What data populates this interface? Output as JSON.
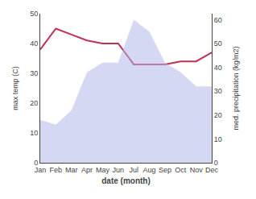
{
  "chart_data": {
    "type": "line",
    "xlabel": "date (month)",
    "ylabel": "max temp (C)",
    "y2label": "med. precipitation (kg/m2)",
    "categories": [
      "Jan",
      "Feb",
      "Mar",
      "Apr",
      "May",
      "Jun",
      "Jul",
      "Aug",
      "Sep",
      "Oct",
      "Nov",
      "Dec"
    ],
    "series": [
      {
        "type": "line",
        "color": "#c03050",
        "values": [
          38,
          45,
          43,
          41,
          40,
          40,
          33,
          33,
          33,
          34,
          34,
          37
        ]
      },
      {
        "type": "area",
        "color": "#b0b8e8",
        "axis": "y2",
        "values": [
          18,
          16,
          22,
          38,
          42,
          42,
          60,
          55,
          42,
          38,
          32,
          32
        ]
      }
    ],
    "ylim": [
      0,
      50
    ],
    "yticks": [
      0,
      10,
      20,
      30,
      40,
      50
    ],
    "y2lim": [
      0,
      62.5
    ],
    "y2ticks": [
      0,
      10,
      20,
      30,
      40,
      50,
      60
    ],
    "grid": false
  }
}
